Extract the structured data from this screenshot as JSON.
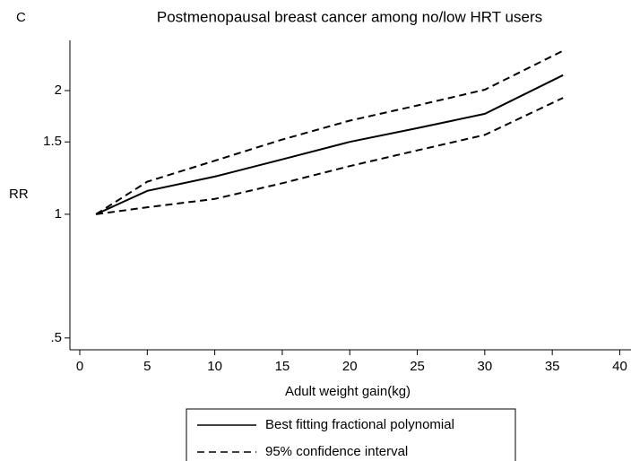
{
  "chart_data": {
    "type": "line",
    "panel_label": "C",
    "title": "Postmenopausal breast cancer among no/low HRT users",
    "x_label": "Adult weight gain(kg)",
    "y_label": "RR",
    "x": [
      1.2,
      5,
      10,
      15,
      20,
      25,
      30,
      35.8
    ],
    "series": [
      {
        "name": "Best fitting fractional polynomial",
        "color": "#000000",
        "line_style": "solid",
        "values": [
          1.0,
          1.14,
          1.235,
          1.36,
          1.5,
          1.62,
          1.756,
          2.18
        ]
      },
      {
        "name": "95% confidence interval",
        "color": "#000000",
        "line_style": "dashed",
        "upper": [
          1.0,
          1.2,
          1.35,
          1.52,
          1.69,
          1.84,
          2.01,
          2.5
        ],
        "lower": [
          1.0,
          1.04,
          1.09,
          1.19,
          1.31,
          1.43,
          1.56,
          1.92
        ]
      }
    ],
    "xlim": [
      -0.73,
      40.5
    ],
    "xticks": [
      0,
      5,
      10,
      15,
      20,
      25,
      30,
      35,
      40
    ],
    "ylim": [
      0.468,
      2.65
    ],
    "y_scale": "log",
    "yticks": [
      {
        "value": 0.5,
        "label": ".5"
      },
      1,
      1.5,
      2
    ],
    "grid": false,
    "legend_position": "bottom"
  }
}
